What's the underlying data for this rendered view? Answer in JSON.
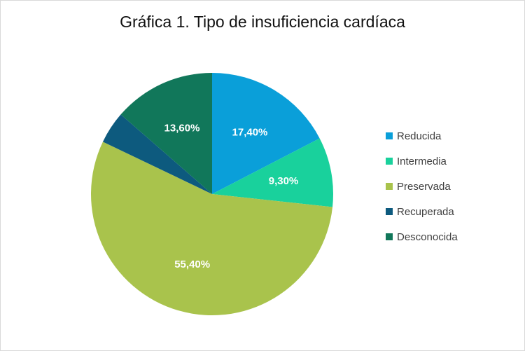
{
  "chart_data": {
    "type": "pie",
    "title": "Gráfica 1. Tipo de insuficiencia cardíaca",
    "categories": [
      "Reducida",
      "Intermedia",
      "Preservada",
      "Recuperada",
      "Desconocida"
    ],
    "values": [
      17.4,
      9.3,
      55.4,
      4.3,
      13.6
    ],
    "value_labels": [
      "17,40%",
      "9,30%",
      "55,40%",
      "",
      "13,60%"
    ],
    "colors": [
      "#0a9fd9",
      "#19d19c",
      "#a9c34c",
      "#0d5a7e",
      "#11775a"
    ],
    "legend": "right"
  }
}
